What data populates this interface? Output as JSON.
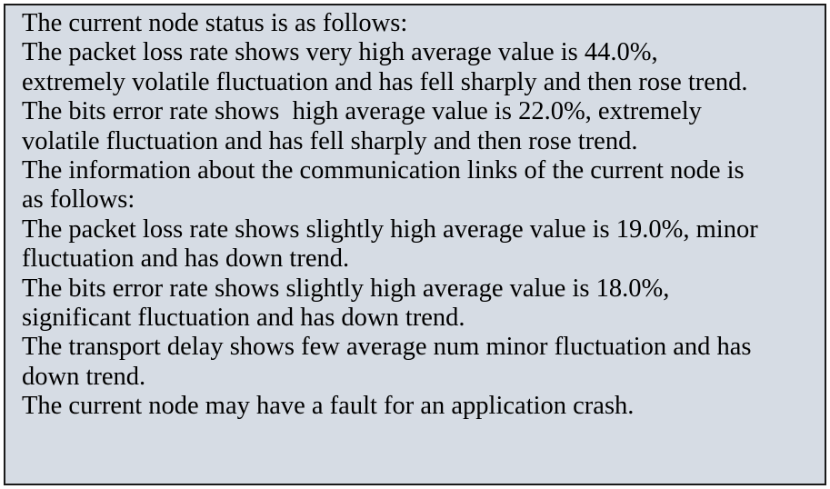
{
  "text_box": {
    "lines": [
      "The current node status is as follows:",
      "The packet loss rate shows very high average value is 44.0%,",
      "extremely volatile fluctuation and has fell sharply and then rose trend.",
      "The bits error rate shows  high average value is 22.0%, extremely",
      "volatile fluctuation and has fell sharply and then rose trend.",
      "The information about the communication links of the current node is",
      "as follows:",
      "The packet loss rate shows slightly high average value is 19.0%, minor",
      "fluctuation and has down trend.",
      "The bits error rate shows slightly high average value is 18.0%,",
      "significant fluctuation and has down trend.",
      "The transport delay shows few average num minor fluctuation and has",
      "down trend.",
      "The current node may have a fault for an application crash."
    ]
  }
}
